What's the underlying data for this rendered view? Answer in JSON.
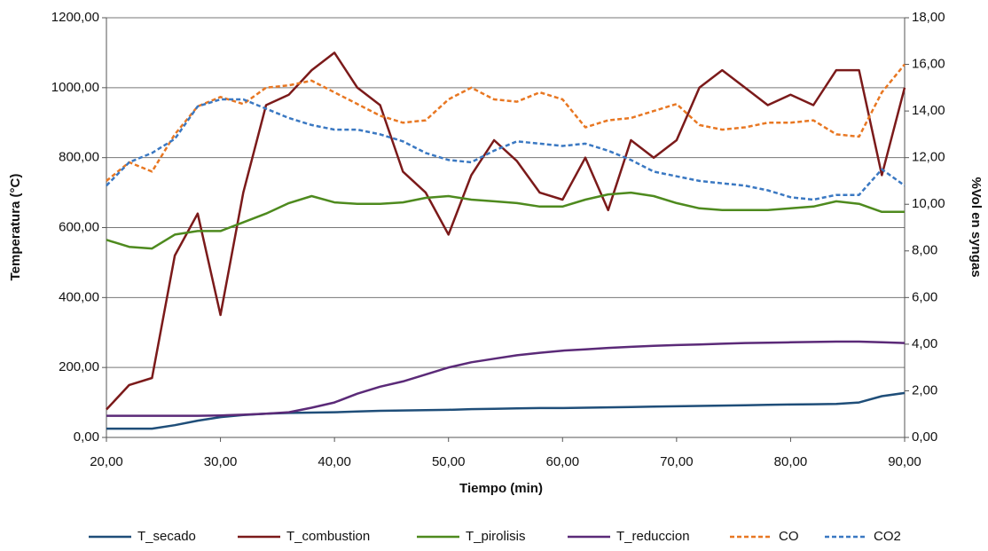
{
  "chart_data": {
    "type": "line",
    "x_label": "Tiempo (min)",
    "y_label": "Temperatura (°C)",
    "y2_label": "%Vol en syngas",
    "x": [
      20,
      22,
      24,
      26,
      28,
      30,
      32,
      34,
      36,
      38,
      40,
      42,
      44,
      46,
      48,
      50,
      52,
      54,
      56,
      58,
      60,
      62,
      64,
      66,
      68,
      70,
      72,
      74,
      76,
      78,
      80,
      82,
      84,
      86,
      88,
      90
    ],
    "series": [
      {
        "name": "T_secado",
        "color": "#1f4e79",
        "style": "solid",
        "values": [
          25,
          25,
          25,
          35,
          48,
          58,
          64,
          68,
          70,
          71,
          72,
          74,
          76,
          77,
          78,
          79,
          81,
          82,
          83,
          84,
          84,
          85,
          86,
          87,
          88,
          89,
          90,
          91,
          92,
          93,
          94,
          95,
          96,
          100,
          118,
          127
        ]
      },
      {
        "name": "T_combustion",
        "color": "#7b1a1a",
        "style": "solid",
        "values": [
          80,
          150,
          170,
          520,
          640,
          350,
          700,
          950,
          980,
          1050,
          1100,
          1000,
          950,
          760,
          700,
          580,
          750,
          850,
          790,
          700,
          680,
          800,
          650,
          850,
          800,
          850,
          1000,
          1050,
          1000,
          950,
          980,
          950,
          1050,
          1050,
          750,
          1000
        ]
      },
      {
        "name": "T_pirolisis",
        "color": "#4e8a1e",
        "style": "solid",
        "values": [
          565,
          545,
          540,
          580,
          590,
          590,
          615,
          640,
          670,
          690,
          672,
          668,
          668,
          672,
          685,
          690,
          680,
          675,
          670,
          660,
          660,
          680,
          695,
          700,
          690,
          670,
          655,
          650,
          650,
          650,
          655,
          660,
          675,
          668,
          645,
          645
        ]
      },
      {
        "name": "T_reduccion",
        "color": "#5b2a78",
        "style": "solid",
        "values": [
          62,
          62,
          62,
          62,
          62,
          63,
          65,
          68,
          72,
          85,
          100,
          125,
          145,
          160,
          180,
          200,
          215,
          225,
          235,
          242,
          248,
          252,
          256,
          259,
          262,
          264,
          266,
          268,
          270,
          271,
          272,
          273,
          274,
          274,
          272,
          270
        ]
      },
      {
        "name": "CO",
        "color": "#e87722",
        "style": "dashed",
        "axis": "y2",
        "values": [
          11,
          11.8,
          11.4,
          13,
          14.2,
          14.6,
          14.3,
          15,
          15.1,
          15.3,
          14.8,
          14.3,
          13.8,
          13.5,
          13.6,
          14.5,
          15,
          14.5,
          14.4,
          14.8,
          14.5,
          13.3,
          13.6,
          13.7,
          14,
          14.3,
          13.4,
          13.2,
          13.3,
          13.5,
          13.5,
          13.6,
          13,
          12.9,
          14.8,
          16
        ]
      },
      {
        "name": "CO2",
        "color": "#3a78c2",
        "style": "dashed",
        "axis": "y2",
        "values": [
          10.8,
          11.8,
          12.2,
          12.8,
          14.2,
          14.5,
          14.5,
          14.1,
          13.7,
          13.4,
          13.2,
          13.2,
          13,
          12.7,
          12.2,
          11.9,
          11.8,
          12.3,
          12.7,
          12.6,
          12.5,
          12.6,
          12.3,
          11.9,
          11.4,
          11.2,
          11,
          10.9,
          10.8,
          10.6,
          10.3,
          10.2,
          10.4,
          10.4,
          11.5,
          10.8
        ]
      }
    ],
    "xlim": [
      20,
      90
    ],
    "xticks": [
      {
        "value": 20,
        "label": "20,00"
      },
      {
        "value": 30,
        "label": "30,00"
      },
      {
        "value": 40,
        "label": "40,00"
      },
      {
        "value": 50,
        "label": "50,00"
      },
      {
        "value": 60,
        "label": "60,00"
      },
      {
        "value": 70,
        "label": "70,00"
      },
      {
        "value": 80,
        "label": "80,00"
      },
      {
        "value": 90,
        "label": "90,00"
      }
    ],
    "ylim": [
      0,
      1200
    ],
    "yticks": [
      {
        "value": 0,
        "label": "0,00"
      },
      {
        "value": 200,
        "label": "200,00"
      },
      {
        "value": 400,
        "label": "400,00"
      },
      {
        "value": 600,
        "label": "600,00"
      },
      {
        "value": 800,
        "label": "800,00"
      },
      {
        "value": 1000,
        "label": "1000,00"
      },
      {
        "value": 1200,
        "label": "1200,00"
      }
    ],
    "y2lim": [
      0,
      18
    ],
    "y2ticks": [
      {
        "value": 0,
        "label": "0,00"
      },
      {
        "value": 2,
        "label": "2,00"
      },
      {
        "value": 4,
        "label": "4,00"
      },
      {
        "value": 6,
        "label": "6,00"
      },
      {
        "value": 8,
        "label": "8,00"
      },
      {
        "value": 10,
        "label": "10,00"
      },
      {
        "value": 12,
        "label": "12,00"
      },
      {
        "value": 14,
        "label": "14,00"
      },
      {
        "value": 16,
        "label": "16,00"
      },
      {
        "value": 18,
        "label": "18,00"
      }
    ],
    "grid": true,
    "legend": "bottom"
  }
}
